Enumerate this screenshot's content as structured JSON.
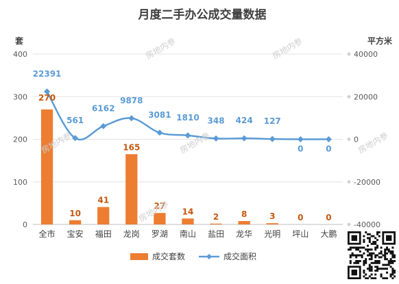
{
  "chart_data": {
    "type": "bar",
    "title": "月度二手办公成交量数据",
    "categories": [
      "全市",
      "宝安",
      "福田",
      "龙岗",
      "罗湖",
      "南山",
      "盐田",
      "龙华",
      "光明",
      "坪山",
      "大鹏"
    ],
    "series": [
      {
        "name": "成交套数",
        "type": "bar",
        "axis": "left",
        "values": [
          270,
          10,
          41,
          165,
          27,
          14,
          2,
          8,
          3,
          0,
          0
        ]
      },
      {
        "name": "成交面积",
        "type": "line",
        "axis": "right",
        "values": [
          22391,
          561,
          6162,
          9878,
          3081,
          1810,
          348,
          424,
          127,
          0,
          0
        ]
      }
    ],
    "ylabel_left": "套",
    "ylabel_right": "平方米",
    "ylim_left": [
      0,
      400
    ],
    "ylim_right": [
      -40000,
      40000
    ],
    "yticks_left": [
      0,
      100,
      200,
      300,
      400
    ],
    "yticks_right": [
      -40000,
      -20000,
      0,
      20000,
      40000
    ],
    "grid": true,
    "legend": "bottom"
  },
  "watermark": "房地内参",
  "colors": {
    "bar": "#ED7D31",
    "line": "#5B9BD5",
    "bar_label": "#C55A11",
    "line_label": "#5B9BD5"
  }
}
